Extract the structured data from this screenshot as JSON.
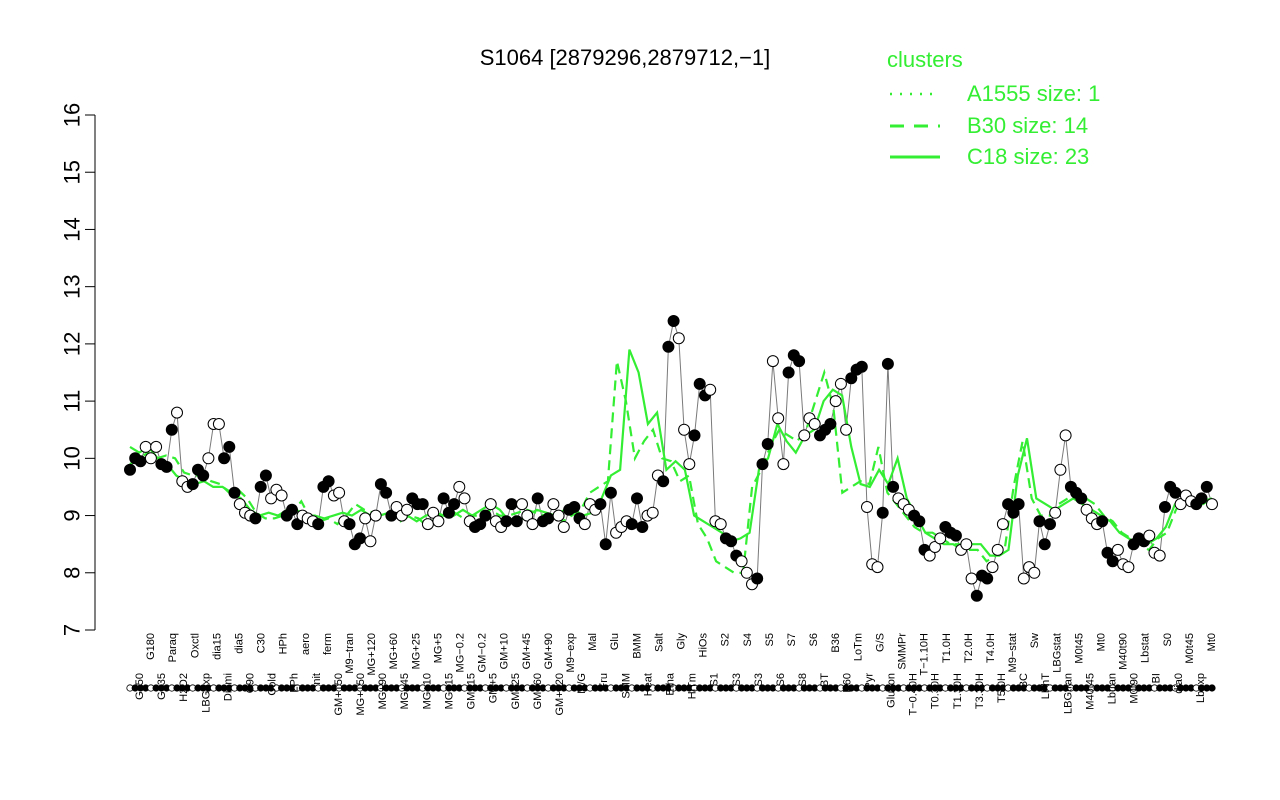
{
  "chart_data": {
    "type": "line",
    "title": "S1064 [2879296,2879712,−1]",
    "xlabel": "",
    "ylabel": "",
    "ylim": [
      7,
      16
    ],
    "yticks": [
      7,
      8,
      9,
      10,
      11,
      12,
      13,
      14,
      15,
      16
    ],
    "grid": false,
    "legend": {
      "title": "clusters",
      "position": "top-right",
      "entries": [
        {
          "label": "A1555 size: 1",
          "style": "dotted"
        },
        {
          "label": "B30 size: 14",
          "style": "dashed"
        },
        {
          "label": "C18 size: 23",
          "style": "solid"
        }
      ]
    },
    "colors": {
      "line": "#33ee33",
      "point_edge": "#000000",
      "open_fill": "#ffffff",
      "filled": "#000000"
    },
    "x_tick_labels": [
      "G150",
      "G180",
      "G135",
      "Paraq",
      "H2O2",
      "Oxctl",
      "LBGexp",
      "dia15",
      "Diami",
      "dia5",
      "C90",
      "C30",
      "Cold",
      "HPh",
      "LPh",
      "aero",
      "nit",
      "ferm",
      "GM+150",
      "M9−tran",
      "MG+150",
      "MG+120",
      "MG+90",
      "MG+60",
      "MG+45",
      "MG+25",
      "MG+10",
      "MG+5",
      "MG+15",
      "MG−0.2",
      "GM+15",
      "GM−0.2",
      "GM+5",
      "GM+10",
      "GM+25",
      "GM+45",
      "GM+60",
      "GM+90",
      "GM+120",
      "M9−exp",
      "M/G",
      "Mal",
      "Fru",
      "Glu",
      "SMM",
      "BMM",
      "Heat",
      "Salt",
      "Etha",
      "Gly",
      "HiTm",
      "HiOs",
      "S1",
      "S2",
      "S3",
      "S4",
      "S3",
      "S5",
      "S6",
      "S7",
      "S8",
      "S6",
      "BT",
      "B36",
      "B60",
      "LoTm",
      "Pyr",
      "G/S",
      "Glucon",
      "SMMPr",
      "T−0.40H",
      "T−1.10H",
      "T0.30H",
      "T1.0H",
      "T1.30H",
      "T2.0H",
      "T3.30H",
      "T4.0H",
      "T5.0H",
      "M9−stat",
      "BC",
      "Sw",
      "LPhT",
      "LBGstat",
      "LBGtran",
      "M0t45",
      "M40t45",
      "Mt0",
      "Lbtran",
      "M40t90",
      "M0t90",
      "Lbstat",
      "BI",
      "S0",
      "dia0",
      "M0t45",
      "Lbexp",
      "Mt0"
    ],
    "series": [
      {
        "name": "",
        "values": [
          9.8,
          10.0,
          9.95,
          10.2,
          10.0,
          10.2,
          9.9,
          9.85,
          10.5,
          10.8,
          9.6,
          9.5,
          9.55,
          9.8,
          9.7,
          10.0,
          10.6,
          10.6,
          10.0,
          10.2,
          9.4,
          9.2,
          9.05,
          9.0,
          8.95,
          9.5,
          9.7,
          9.3,
          9.45,
          9.35,
          9.0,
          9.1,
          8.85,
          9.0,
          8.95,
          8.9,
          8.85,
          9.5,
          9.6,
          9.35,
          9.4,
          8.9,
          8.85,
          8.5,
          8.6,
          8.95,
          8.55,
          9.0,
          9.55,
          9.4,
          9.0,
          9.15,
          9.0,
          9.1,
          9.3,
          9.2,
          9.2,
          8.85,
          9.05,
          8.9,
          9.3,
          9.05,
          9.2,
          9.5,
          9.3,
          8.9,
          8.8,
          8.85,
          9.0,
          9.2,
          8.9,
          8.8,
          8.9,
          9.2,
          8.9,
          9.2,
          9.0,
          8.85,
          9.3,
          8.9,
          8.95,
          9.2,
          9.0,
          8.8,
          9.1,
          9.15,
          8.95,
          8.85,
          9.2,
          9.1,
          9.2,
          8.5,
          9.4,
          8.7,
          8.8,
          8.9,
          8.85,
          9.3,
          8.8,
          9.0,
          9.05,
          9.7,
          9.6,
          11.95,
          12.4,
          12.1,
          10.5,
          9.9,
          10.4,
          11.3,
          11.1,
          11.2,
          8.9,
          8.85,
          8.6,
          8.55,
          8.3,
          8.2,
          8.0,
          7.8,
          7.9,
          9.9,
          10.25,
          11.7,
          10.7,
          9.9,
          11.5,
          11.8,
          11.7,
          10.4,
          10.7,
          10.6,
          10.4,
          10.5,
          10.6,
          11.0,
          11.3,
          10.5,
          11.4,
          11.55,
          11.6,
          9.15,
          8.15,
          8.1,
          9.05,
          11.65,
          9.5,
          9.3,
          9.2,
          9.1,
          9.0,
          8.9,
          8.4,
          8.3,
          8.45,
          8.6,
          8.8,
          8.7,
          8.65,
          8.4,
          8.5,
          7.9,
          7.6,
          7.95,
          7.9,
          8.1,
          8.4,
          8.85,
          9.2,
          9.05,
          9.2,
          7.9,
          8.1,
          8.0,
          8.9,
          8.5,
          8.85,
          9.05,
          9.8,
          10.4,
          9.5,
          9.4,
          9.3,
          9.1,
          8.95,
          8.85,
          8.9,
          8.35,
          8.2,
          8.4,
          8.15,
          8.1,
          8.5,
          8.6,
          8.55,
          8.65,
          8.35,
          8.3,
          9.15,
          9.5,
          9.4,
          9.2,
          9.35,
          9.25,
          9.2,
          9.3,
          9.5,
          9.2
        ]
      },
      {
        "name": "",
        "values": [
          9.9,
          10.0,
          10.1,
          10.0,
          10.05,
          10.0,
          9.75,
          9.7,
          9.7,
          9.6,
          9.55,
          9.4,
          9.45,
          9.3,
          9.05,
          8.95,
          8.95,
          9.0,
          9.05,
          9.25,
          8.95,
          8.9,
          8.95,
          8.85,
          9.0,
          9.2,
          9.1,
          9.05,
          9.0,
          9.0,
          8.9,
          9.0,
          8.95,
          8.8,
          9.0,
          9.0,
          9.05,
          8.95,
          9.0,
          9.0,
          9.1,
          9.0,
          9.0,
          9.05,
          9.1,
          9.05,
          9.0,
          9.0,
          8.9,
          9.0,
          9.1,
          9.4,
          9.5,
          9.6,
          11.7,
          11.0,
          10.0,
          10.3,
          10.5,
          10.0,
          9.95,
          9.6,
          9.7,
          8.85,
          8.6,
          8.2,
          8.1,
          8.0,
          8.0,
          9.5,
          9.8,
          10.2,
          10.5,
          10.4,
          10.3,
          10.5,
          11.0,
          11.5,
          10.9,
          9.4,
          9.5,
          9.6,
          9.55,
          10.2,
          9.4,
          9.2,
          9.0,
          8.8,
          8.7,
          8.7,
          8.6,
          8.5,
          8.5,
          8.4,
          8.4,
          8.2,
          8.3,
          8.4,
          9.5,
          10.3,
          9.3,
          9.0,
          9.0,
          9.2,
          9.3,
          9.4,
          9.3,
          9.2,
          9.0,
          8.9,
          8.7,
          8.6,
          8.5,
          8.4,
          8.6,
          8.7,
          9.1,
          9.3,
          9.3,
          9.2,
          9.3
        ]
      },
      {
        "name": "",
        "values": [
          10.2,
          10.1,
          10.2,
          10.0,
          9.9,
          9.7,
          9.6,
          9.55,
          9.6,
          9.5,
          9.5,
          9.4,
          9.3,
          9.1,
          9.0,
          9.05,
          9.0,
          9.1,
          9.1,
          9.0,
          9.0,
          8.95,
          9.0,
          9.05,
          9.0,
          9.1,
          9.0,
          9.0,
          9.05,
          9.1,
          9.0,
          8.9,
          9.0,
          9.05,
          9.0,
          9.0,
          9.1,
          9.0,
          9.1,
          9.2,
          9.1,
          8.9,
          8.9,
          9.0,
          9.1,
          9.05,
          9.0,
          9.1,
          9.1,
          9.0,
          9.05,
          9.3,
          9.7,
          9.8,
          11.9,
          11.5,
          10.6,
          10.8,
          9.8,
          9.95,
          9.8,
          9.0,
          8.9,
          8.8,
          8.7,
          8.55,
          8.6,
          8.7,
          9.8,
          10.0,
          10.6,
          10.3,
          10.1,
          10.4,
          10.5,
          11.0,
          11.2,
          11.1,
          10.2,
          9.55,
          9.5,
          9.8,
          9.55,
          10.0,
          9.3,
          9.0,
          8.7,
          8.6,
          8.5,
          8.5,
          8.4,
          8.5,
          8.5,
          8.3,
          8.3,
          8.4,
          9.7,
          10.35,
          9.3,
          9.2,
          9.1,
          9.2,
          9.3,
          9.2,
          9.1,
          9.0,
          8.9,
          8.7,
          8.6,
          8.5,
          8.5,
          8.6,
          8.8,
          9.2,
          9.3,
          9.3,
          9.25,
          9.3
        ]
      }
    ]
  }
}
